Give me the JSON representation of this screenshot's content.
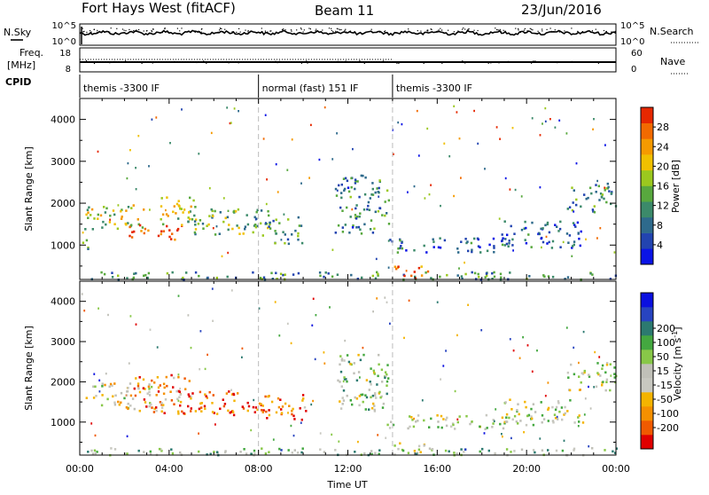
{
  "header": {
    "station": "Fort Hays West (fitACF)",
    "beam": "Beam 11",
    "date": "23/Jun/2016"
  },
  "left_labels": {
    "nsky": "N.Sky",
    "nsky_ticks": [
      "10^5",
      "10^0"
    ],
    "freq_line1": "Freq.",
    "freq_line2": "[MHz]",
    "freq_ticks": [
      "18",
      "8"
    ],
    "cpid": "CPID"
  },
  "right_labels": {
    "nsearch": "N.Search",
    "nsearch_ticks": [
      "10^5",
      "10^0"
    ],
    "nave": "Nave",
    "nave_ticks": [
      "60",
      "0"
    ]
  },
  "cpid_segments": [
    {
      "label": "themis -3300 IF",
      "start_h": 0,
      "end_h": 8
    },
    {
      "label": "normal (fast) 151 IF",
      "start_h": 8,
      "end_h": 14
    },
    {
      "label": "themis -3300 IF",
      "start_h": 14,
      "end_h": 24
    }
  ],
  "chart_data": [
    {
      "type": "heatmap",
      "quantity": "Power",
      "ylabel": "Slant Range [km]",
      "xlabel": "Time UT",
      "xlim_hours": [
        0,
        24
      ],
      "ylim": [
        180,
        4500
      ],
      "yticks": [
        1000,
        2000,
        3000,
        4000
      ],
      "xticks": [
        "00:00",
        "04:00",
        "08:00",
        "12:00",
        "16:00",
        "20:00",
        "00:00"
      ],
      "colorbar": {
        "label": "Power [dB]",
        "ticks": [
          "4",
          "8",
          "12",
          "16",
          "20",
          "24",
          "28"
        ],
        "range": [
          0,
          32
        ],
        "colors": [
          "#0a14e6",
          "#2244b0",
          "#2e6a8c",
          "#3c8a6a",
          "#58a83e",
          "#9bc81e",
          "#f0c000",
          "#f59a00",
          "#f26a00",
          "#e62800"
        ]
      },
      "scatter_regions": [
        {
          "t0": 0.2,
          "t1": 3.0,
          "r0": 1400,
          "r1": 2000,
          "level": 0.55
        },
        {
          "t0": 2.0,
          "t1": 4.6,
          "r0": 1150,
          "r1": 1500,
          "level": 0.95
        },
        {
          "t0": 3.5,
          "t1": 5.2,
          "r0": 1500,
          "r1": 2200,
          "level": 0.6
        },
        {
          "t0": 4.8,
          "t1": 8.6,
          "r0": 1250,
          "r1": 1900,
          "level": 0.45
        },
        {
          "t0": 8.4,
          "t1": 10.0,
          "r0": 1050,
          "r1": 1700,
          "level": 0.4
        },
        {
          "t0": 11.4,
          "t1": 13.8,
          "r0": 1300,
          "r1": 2700,
          "level": 0.3
        },
        {
          "t0": 13.6,
          "t1": 19.2,
          "r0": 850,
          "r1": 1200,
          "level": 0.25
        },
        {
          "t0": 18.8,
          "t1": 22.5,
          "r0": 950,
          "r1": 1600,
          "level": 0.2
        },
        {
          "t0": 21.8,
          "t1": 24.0,
          "r0": 1800,
          "r1": 2500,
          "level": 0.35
        },
        {
          "t0": 0.3,
          "t1": 24.0,
          "r0": 200,
          "r1": 380,
          "level": 0.35
        },
        {
          "t0": 14.0,
          "t1": 15.6,
          "r0": 220,
          "r1": 520,
          "level": 0.9
        },
        {
          "t0": 0.1,
          "t1": 0.8,
          "r0": 900,
          "r1": 1150,
          "level": 0.4
        }
      ]
    },
    {
      "type": "heatmap",
      "quantity": "Velocity",
      "ylabel": "Slant Range [km]",
      "xlabel": "Time UT",
      "xlim_hours": [
        0,
        24
      ],
      "ylim": [
        180,
        4500
      ],
      "yticks": [
        1000,
        2000,
        3000,
        4000
      ],
      "xticks": [
        "00:00",
        "04:00",
        "08:00",
        "12:00",
        "16:00",
        "20:00",
        "00:00"
      ],
      "colorbar": {
        "label_main": "Velocity [m s",
        "label_sup": "-1",
        "label_end": "]",
        "ticks": [
          "-200",
          "-100",
          "-50",
          "-15",
          "15",
          "50",
          "100",
          "200"
        ],
        "colors": [
          "#e00000",
          "#f05a00",
          "#f59000",
          "#f4b400",
          "#c8c8c0",
          "#c0c0b8",
          "#88c848",
          "#44a840",
          "#2c7a70",
          "#2844c0",
          "#0a10e0"
        ]
      },
      "scatter_regions": [
        {
          "t0": 0.2,
          "t1": 3.2,
          "r0": 1350,
          "r1": 2000,
          "level": 0.45
        },
        {
          "t0": 2.4,
          "t1": 5.0,
          "r0": 1200,
          "r1": 2200,
          "level": 0.2
        },
        {
          "t0": 4.8,
          "t1": 8.2,
          "r0": 1200,
          "r1": 1800,
          "level": 0.15
        },
        {
          "t0": 8.0,
          "t1": 10.2,
          "r0": 1050,
          "r1": 1700,
          "level": 0.15
        },
        {
          "t0": 11.4,
          "t1": 13.8,
          "r0": 1300,
          "r1": 2700,
          "level": 0.55
        },
        {
          "t0": 13.6,
          "t1": 19.2,
          "r0": 850,
          "r1": 1200,
          "level": 0.5
        },
        {
          "t0": 18.8,
          "t1": 22.5,
          "r0": 950,
          "r1": 1600,
          "level": 0.5
        },
        {
          "t0": 21.8,
          "t1": 24.0,
          "r0": 1800,
          "r1": 2500,
          "level": 0.5
        },
        {
          "t0": 0.3,
          "t1": 24.0,
          "r0": 200,
          "r1": 380,
          "level": 0.6
        },
        {
          "t0": 14.0,
          "t1": 15.6,
          "r0": 220,
          "r1": 520,
          "level": 0.45
        }
      ]
    }
  ]
}
